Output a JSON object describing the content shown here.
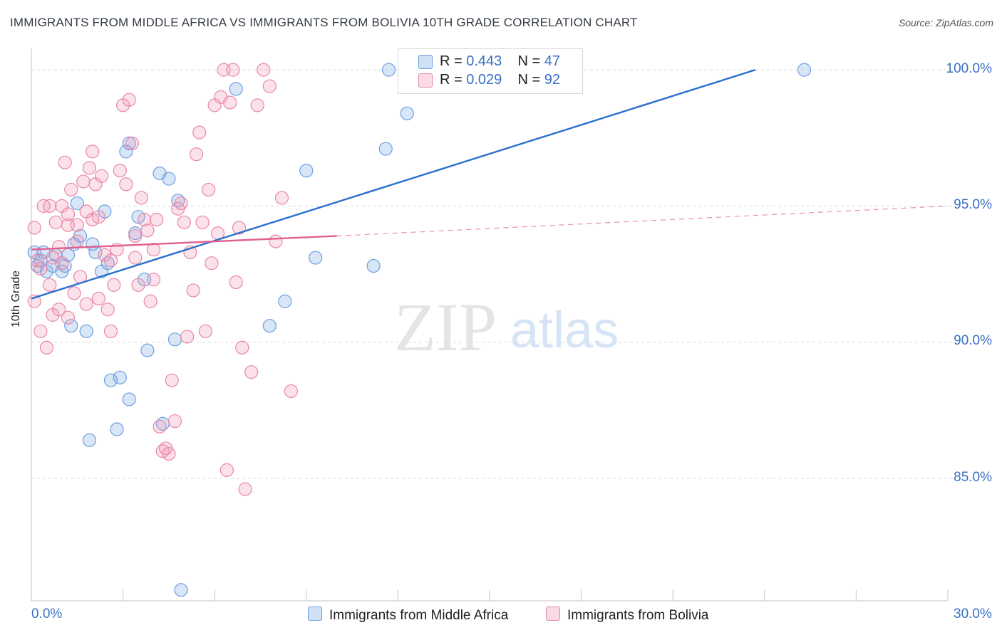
{
  "title": "IMMIGRANTS FROM MIDDLE AFRICA VS IMMIGRANTS FROM BOLIVIA 10TH GRADE CORRELATION CHART",
  "source": "Source: ZipAtlas.com",
  "watermark": {
    "zip": "ZIP",
    "atlas": "atlas"
  },
  "legend": {
    "rows": [
      {
        "r_label": "R =",
        "r_value": "0.443",
        "n_label": "N =",
        "n_value": "47"
      },
      {
        "r_label": "R =",
        "r_value": "0.029",
        "n_label": "N =",
        "n_value": "92"
      }
    ]
  },
  "bottom_legend": [
    "Immigrants from Middle Africa",
    "Immigrants from Bolivia"
  ],
  "colors": {
    "blue": "#6d9fe0",
    "blue_fill": "rgba(120,165,225,0.28)",
    "blue_line": "#2a6fcf",
    "pink": "#e887a8",
    "pink_fill": "rgba(240,150,180,0.28)",
    "pink_line": "#e06090",
    "tick_text": "#3a6fc4",
    "grid": "#d9d9d9"
  },
  "chart_data": {
    "type": "scatter",
    "xlabel": "",
    "ylabel": "10th Grade",
    "xlim": [
      0,
      30
    ],
    "ylim": [
      80.5,
      100.5
    ],
    "x_tick_labels": [
      "0.0%",
      "30.0%"
    ],
    "y_ticks": [
      85,
      90,
      95,
      100
    ],
    "y_tick_labels": [
      "85.0%",
      "90.0%",
      "95.0%",
      "100.0%"
    ],
    "grid": true,
    "legend_placement": "top-center",
    "series": [
      {
        "name": "Immigrants from Middle Africa",
        "color": "blue",
        "trend": {
          "x": [
            0.0,
            23.7
          ],
          "y": [
            91.6,
            100.0
          ],
          "dashed_to": null
        },
        "points": [
          [
            0.1,
            93.3
          ],
          [
            0.2,
            92.8
          ],
          [
            0.3,
            93.0
          ],
          [
            0.4,
            93.3
          ],
          [
            0.5,
            92.6
          ],
          [
            0.7,
            92.8
          ],
          [
            0.8,
            93.2
          ],
          [
            1.0,
            92.6
          ],
          [
            1.1,
            92.8
          ],
          [
            1.2,
            93.2
          ],
          [
            1.3,
            90.6
          ],
          [
            1.4,
            93.6
          ],
          [
            1.5,
            95.1
          ],
          [
            1.6,
            93.9
          ],
          [
            1.8,
            90.4
          ],
          [
            1.9,
            86.4
          ],
          [
            2.0,
            93.6
          ],
          [
            2.1,
            93.3
          ],
          [
            2.3,
            92.6
          ],
          [
            2.4,
            94.8
          ],
          [
            2.5,
            92.9
          ],
          [
            2.6,
            88.6
          ],
          [
            2.8,
            86.8
          ],
          [
            2.9,
            88.7
          ],
          [
            3.2,
            87.9
          ],
          [
            3.1,
            97.0
          ],
          [
            3.2,
            97.3
          ],
          [
            3.4,
            94.0
          ],
          [
            3.5,
            94.6
          ],
          [
            3.7,
            92.3
          ],
          [
            3.8,
            89.7
          ],
          [
            4.2,
            96.2
          ],
          [
            4.3,
            87.0
          ],
          [
            4.5,
            96.0
          ],
          [
            4.7,
            90.1
          ],
          [
            4.8,
            95.2
          ],
          [
            4.9,
            80.9
          ],
          [
            6.7,
            99.3
          ],
          [
            7.8,
            90.6
          ],
          [
            8.3,
            91.5
          ],
          [
            9.0,
            96.3
          ],
          [
            9.3,
            93.1
          ],
          [
            11.2,
            92.8
          ],
          [
            11.6,
            97.1
          ],
          [
            11.7,
            100.0
          ],
          [
            12.3,
            98.4
          ],
          [
            25.3,
            100.0
          ]
        ]
      },
      {
        "name": "Immigrants from Bolivia",
        "color": "pink",
        "trend": {
          "x": [
            0.0,
            10.0
          ],
          "y": [
            93.4,
            93.9
          ],
          "dashed_to": [
            30.0,
            95.0
          ]
        },
        "points": [
          [
            0.1,
            94.2
          ],
          [
            0.1,
            91.5
          ],
          [
            0.2,
            93.0
          ],
          [
            0.3,
            90.4
          ],
          [
            0.3,
            92.7
          ],
          [
            0.4,
            95.0
          ],
          [
            0.5,
            89.8
          ],
          [
            0.6,
            92.1
          ],
          [
            0.7,
            91.0
          ],
          [
            0.8,
            94.4
          ],
          [
            0.9,
            93.5
          ],
          [
            1.0,
            95.0
          ],
          [
            1.1,
            96.6
          ],
          [
            1.2,
            94.3
          ],
          [
            1.2,
            90.9
          ],
          [
            1.3,
            95.6
          ],
          [
            1.4,
            91.8
          ],
          [
            1.5,
            94.3
          ],
          [
            1.6,
            92.4
          ],
          [
            1.7,
            95.9
          ],
          [
            1.8,
            94.8
          ],
          [
            1.9,
            96.4
          ],
          [
            2.0,
            97.0
          ],
          [
            2.1,
            95.8
          ],
          [
            2.2,
            94.6
          ],
          [
            2.3,
            96.1
          ],
          [
            2.4,
            93.2
          ],
          [
            2.5,
            91.2
          ],
          [
            2.6,
            90.4
          ],
          [
            2.7,
            92.1
          ],
          [
            2.8,
            93.4
          ],
          [
            2.9,
            96.3
          ],
          [
            3.0,
            98.7
          ],
          [
            3.1,
            95.8
          ],
          [
            3.2,
            98.9
          ],
          [
            3.3,
            97.3
          ],
          [
            3.4,
            93.1
          ],
          [
            3.5,
            92.1
          ],
          [
            3.6,
            95.3
          ],
          [
            3.7,
            94.5
          ],
          [
            3.8,
            94.1
          ],
          [
            3.9,
            91.5
          ],
          [
            4.0,
            92.3
          ],
          [
            4.1,
            94.5
          ],
          [
            4.2,
            86.9
          ],
          [
            4.3,
            86.0
          ],
          [
            4.4,
            86.1
          ],
          [
            4.5,
            85.9
          ],
          [
            4.6,
            88.6
          ],
          [
            4.7,
            87.1
          ],
          [
            4.8,
            94.9
          ],
          [
            4.9,
            95.1
          ],
          [
            5.0,
            94.4
          ],
          [
            5.1,
            90.2
          ],
          [
            5.2,
            93.3
          ],
          [
            5.3,
            91.9
          ],
          [
            5.4,
            96.9
          ],
          [
            5.5,
            97.7
          ],
          [
            5.6,
            94.4
          ],
          [
            5.7,
            90.4
          ],
          [
            5.8,
            95.6
          ],
          [
            5.9,
            92.9
          ],
          [
            6.0,
            98.7
          ],
          [
            6.1,
            94.0
          ],
          [
            6.2,
            99.0
          ],
          [
            6.3,
            100.0
          ],
          [
            6.4,
            85.3
          ],
          [
            6.5,
            98.8
          ],
          [
            6.6,
            100.0
          ],
          [
            6.7,
            92.2
          ],
          [
            6.8,
            94.2
          ],
          [
            6.9,
            89.8
          ],
          [
            7.0,
            84.6
          ],
          [
            7.2,
            88.9
          ],
          [
            7.4,
            98.7
          ],
          [
            7.6,
            100.0
          ],
          [
            7.8,
            99.4
          ],
          [
            8.0,
            93.7
          ],
          [
            8.2,
            95.3
          ],
          [
            8.5,
            88.2
          ],
          [
            2.0,
            94.5
          ],
          [
            1.5,
            93.7
          ],
          [
            1.0,
            92.9
          ],
          [
            0.6,
            95.0
          ],
          [
            2.6,
            93.0
          ],
          [
            3.4,
            93.9
          ],
          [
            1.8,
            91.4
          ],
          [
            2.2,
            91.6
          ],
          [
            0.9,
            91.2
          ],
          [
            4.0,
            93.4
          ],
          [
            1.2,
            94.7
          ],
          [
            0.7,
            93.1
          ]
        ]
      }
    ]
  }
}
